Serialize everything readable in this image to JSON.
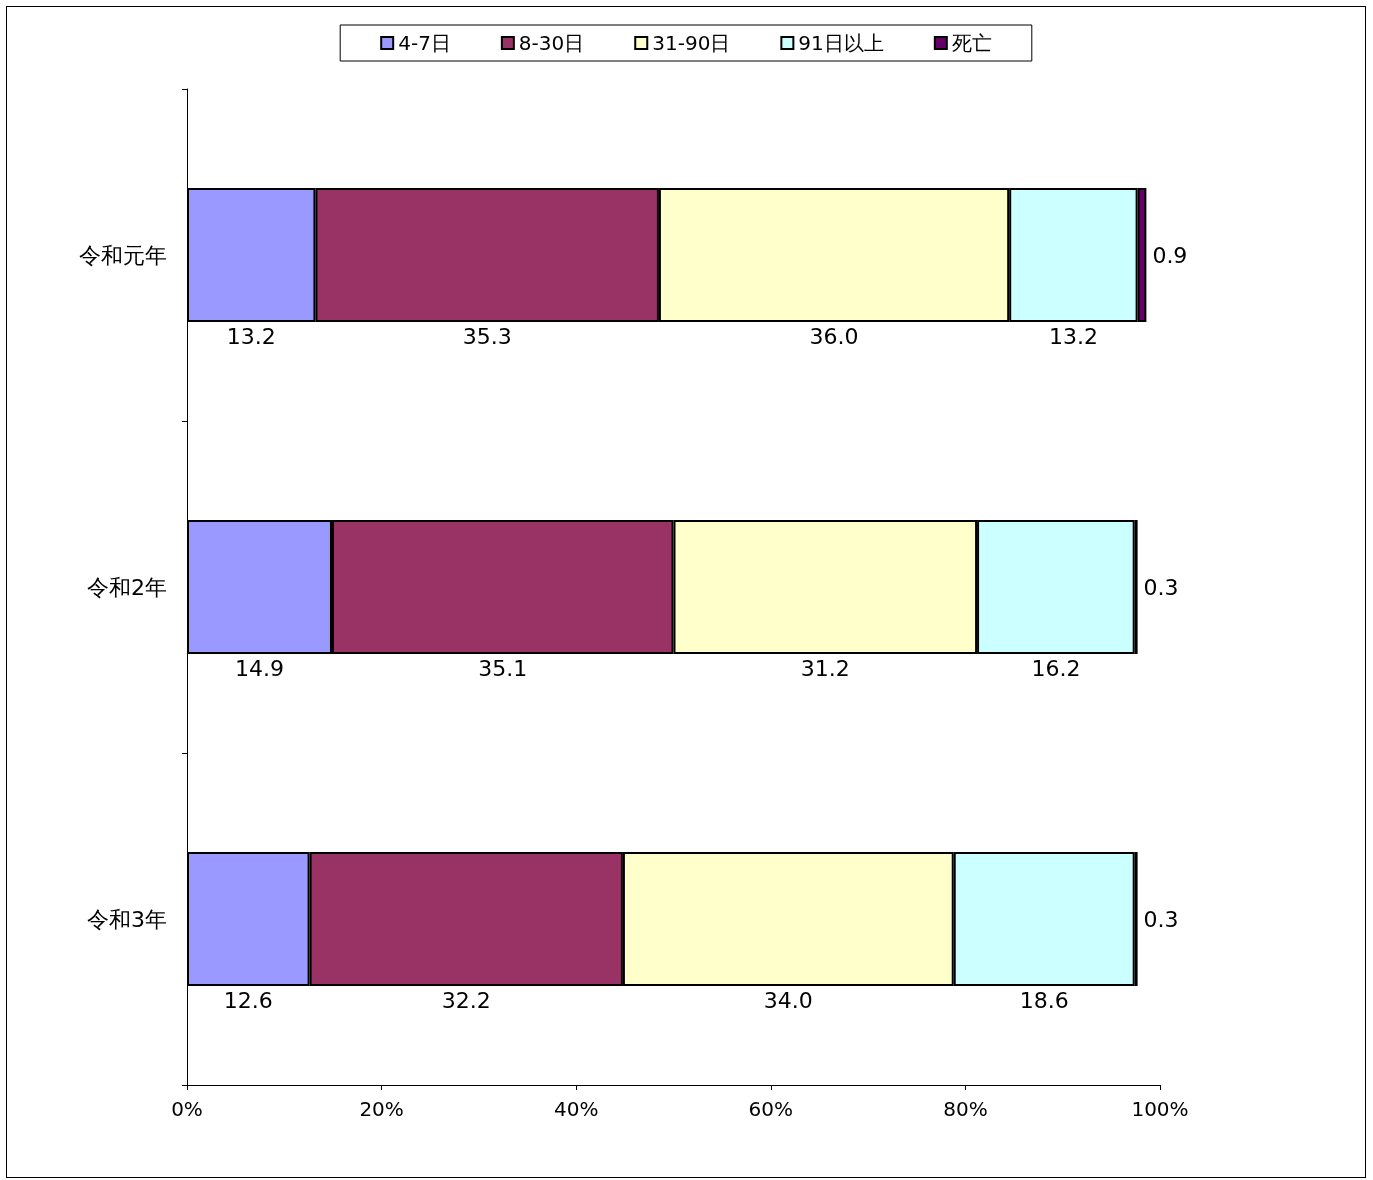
{
  "chart_data": {
    "type": "bar",
    "orientation": "horizontal",
    "stacked": true,
    "categories": [
      "令和元年",
      "令和2年",
      "令和3年"
    ],
    "series": [
      {
        "name": "4-7日",
        "color": "#9999ff",
        "values": [
          13.2,
          14.9,
          12.6
        ],
        "value_labels": [
          "13.2",
          "14.9",
          "12.6"
        ]
      },
      {
        "name": "8-30日",
        "color": "#993366",
        "values": [
          35.3,
          35.1,
          32.2
        ],
        "value_labels": [
          "35.3",
          "35.1",
          "32.2"
        ]
      },
      {
        "name": "31-90日",
        "color": "#ffffcc",
        "values": [
          36.0,
          31.2,
          34.0
        ],
        "value_labels": [
          "36.0",
          "31.2",
          "34.0"
        ]
      },
      {
        "name": "91日以上",
        "color": "#ccffff",
        "values": [
          13.2,
          16.2,
          18.6
        ],
        "value_labels": [
          "13.2",
          "16.2",
          "18.6"
        ]
      },
      {
        "name": "死亡",
        "color": "#660066",
        "values": [
          0.9,
          0.3,
          0.3
        ],
        "value_labels": [
          "0.9",
          "0.3",
          "0.3"
        ]
      }
    ],
    "xlim": [
      0,
      100
    ],
    "xticks": [
      {
        "value": 0,
        "label": "0%"
      },
      {
        "value": 20,
        "label": "20%"
      },
      {
        "value": 40,
        "label": "40%"
      },
      {
        "value": 60,
        "label": "60%"
      },
      {
        "value": 80,
        "label": "80%"
      },
      {
        "value": 100,
        "label": "100%"
      }
    ],
    "grid": false,
    "legend": "top"
  }
}
